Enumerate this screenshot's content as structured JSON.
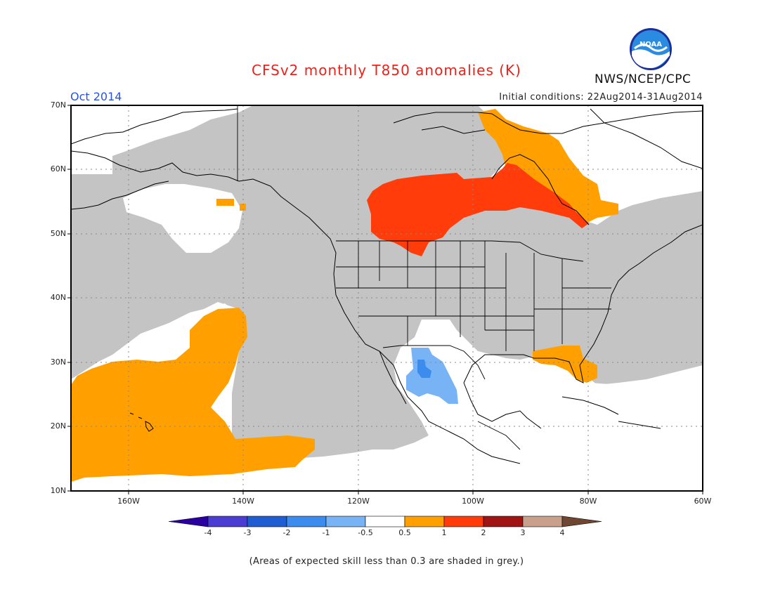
{
  "header": {
    "title": "CFSv2 monthly T850 anomalies (K)",
    "month": "Oct 2014",
    "initial_conditions": "Initial conditions: 22Aug2014-31Aug2014",
    "agency": "NWS/NCEP/CPC",
    "logo_text": "NOAA"
  },
  "map": {
    "lat_labels": [
      "70N",
      "60N",
      "50N",
      "40N",
      "30N",
      "20N",
      "10N"
    ],
    "lon_labels": [
      "160W",
      "140W",
      "120W",
      "100W",
      "80W",
      "60W"
    ],
    "extent": {
      "lon": [
        -172,
        -60
      ],
      "lat": [
        10,
        70
      ]
    },
    "colors": {
      "grey_low_skill": "#c4c4c4",
      "land_line": "#000000",
      "orange": "#ffa000",
      "red": "#ff3c0a",
      "light_blue": "#78b4f5",
      "mid_blue": "#3c8cf0"
    }
  },
  "legend": {
    "labels": [
      "-4",
      "-3",
      "-2",
      "-1",
      "-0.5",
      "0.5",
      "1",
      "2",
      "3",
      "4"
    ],
    "colors": [
      "#2b00a0",
      "#4b3cd2",
      "#1e5ed2",
      "#3c8cf0",
      "#78b4f5",
      "#ffffff",
      "#ffa000",
      "#ff3c0a",
      "#a01414",
      "#c8a08c",
      "#6e4632"
    ]
  },
  "footnote": "(Areas of expected skill less than 0.3 are shaded in grey.)"
}
